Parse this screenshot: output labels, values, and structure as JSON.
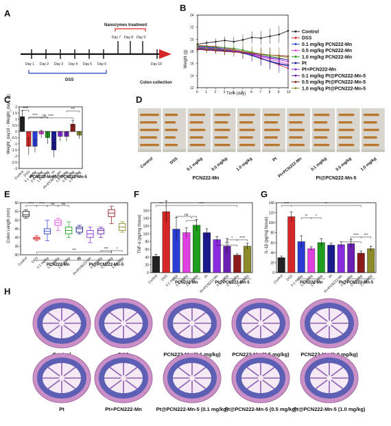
{
  "panels": {
    "A": "A",
    "B": "B",
    "C": "C",
    "D": "D",
    "E": "E",
    "F": "F",
    "G": "G",
    "H": "H"
  },
  "timeline": {
    "nano_label": "Nanozymes treatment",
    "dss_label": "DSS",
    "collect_label": "Colon collection",
    "days_bottom": [
      "Day 1",
      "Day 2",
      "Day 3",
      "Day 4",
      "Day 5",
      "Day 6",
      "Day 10"
    ],
    "days_top": [
      "Day 7",
      "Day 8",
      "Day 9"
    ],
    "colors": {
      "nano": "#d62728",
      "dss": "#1f3fbf",
      "collect": "#2e8b22",
      "arrow": "#d62728"
    }
  },
  "groups": [
    "Control",
    "DSS",
    "0.1 mg/kg PCN222-Mn",
    "0.5 mg/kg PCN222-Mn",
    "1.0 mg/kg PCN222-Mn",
    "Pt",
    "Pt+PCN222-Mn",
    "0.1 mg/kg Pt@PCN222-Mn-5",
    "0.5 mg/kg Pt@PCN222-Mn-5",
    "1.0 mg/kg Pt@PCN222-Mn-5"
  ],
  "group_colors": [
    "#222222",
    "#d62728",
    "#2a3bd6",
    "#e040e0",
    "#1f9e1f",
    "#1a1a8c",
    "#8a2be2",
    "#6a1fb0",
    "#8b1a1a",
    "#8b8b2a"
  ],
  "short_labels": [
    "Control",
    "DSS",
    "0.1 mg/kg",
    "0.5 mg/kg",
    "1.0 mg/kg",
    "Pt",
    "Pt+PCN222-Mn",
    "0.1 mg/kg",
    "0.5 mg/kg",
    "1.0 mg/kg"
  ],
  "group_names": {
    "mn": "PCN222-Mn",
    "ptmn": "Pt@PCN222-Mn-5"
  },
  "stars": {
    "s4": "****",
    "s3": "***",
    "s2": "**",
    "s1": "*",
    "ns": "ns"
  },
  "chart_data": [
    {
      "panel": "B",
      "type": "line",
      "xlabel": "Time (day)",
      "ylabel": "Weight (g)",
      "xlim": [
        0,
        10
      ],
      "ylim": [
        12,
        24
      ],
      "x": [
        0,
        1,
        2,
        3,
        4,
        5,
        6,
        7,
        8,
        9,
        10
      ],
      "xticks": [
        0,
        1,
        2,
        3,
        4,
        5,
        6,
        7,
        8,
        9,
        10
      ],
      "yticks": [
        12,
        14,
        16,
        18,
        20,
        22,
        24
      ],
      "series": [
        {
          "name": "Control",
          "values": [
            19.2,
            19.4,
            19.6,
            19.8,
            19.6,
            19.9,
            20.3,
            20.2,
            20.5,
            20.8,
            21.4
          ]
        },
        {
          "name": "DSS",
          "values": [
            19.0,
            18.9,
            18.8,
            18.6,
            18.3,
            18.0,
            17.6,
            16.9,
            16.3,
            15.8,
            15.2
          ]
        },
        {
          "name": "0.1 mg/kg PCN222-Mn",
          "values": [
            18.8,
            18.7,
            18.6,
            18.4,
            18.2,
            17.8,
            17.4,
            16.8,
            16.3,
            15.9,
            15.6
          ]
        },
        {
          "name": "0.5 mg/kg PCN222-Mn",
          "values": [
            18.6,
            18.5,
            18.4,
            18.3,
            18.1,
            17.8,
            17.5,
            17.0,
            16.7,
            16.3,
            15.9
          ]
        },
        {
          "name": "1.0 mg/kg PCN222-Mn",
          "values": [
            18.9,
            18.8,
            18.7,
            18.6,
            18.5,
            18.2,
            17.9,
            17.5,
            17.2,
            16.9,
            16.6
          ]
        },
        {
          "name": "Pt",
          "values": [
            18.5,
            18.4,
            18.3,
            18.2,
            18.0,
            17.7,
            17.3,
            16.8,
            16.4,
            16.0,
            15.7
          ]
        },
        {
          "name": "Pt+PCN222-Mn",
          "values": [
            18.7,
            18.6,
            18.5,
            18.4,
            18.2,
            17.9,
            17.6,
            17.2,
            16.9,
            16.6,
            16.3
          ]
        },
        {
          "name": "0.1 mg/kg Pt@PCN222-Mn-5",
          "values": [
            18.4,
            18.3,
            18.2,
            18.1,
            18.0,
            17.8,
            17.6,
            17.3,
            17.0,
            16.8,
            16.6
          ]
        },
        {
          "name": "0.5 mg/kg Pt@PCN222-Mn-5",
          "values": [
            18.3,
            18.2,
            18.1,
            18.0,
            17.9,
            17.8,
            17.7,
            17.5,
            17.4,
            17.3,
            17.2
          ]
        },
        {
          "name": "1.0 mg/kg Pt@PCN222-Mn-5",
          "values": [
            18.6,
            18.5,
            18.4,
            18.3,
            18.2,
            18.0,
            17.8,
            17.6,
            17.4,
            17.2,
            17.0
          ]
        }
      ]
    },
    {
      "panel": "C",
      "type": "bar",
      "ylabel": "Weight_day10 - Weight_day1 (g)",
      "ylim": [
        -3.0,
        2.0
      ],
      "yticks": [
        2.0,
        1.5,
        1.0,
        0.5,
        0.0,
        -0.5,
        -1.0,
        -1.5,
        -2.0,
        -2.5,
        -3.0
      ],
      "values": [
        1.2,
        -1.2,
        -1.2,
        -0.2,
        -0.5,
        -1.5,
        -0.4,
        -0.4,
        0.6,
        -0.3
      ],
      "errors": [
        0.5,
        0.7,
        0.5,
        0.3,
        0.5,
        0.6,
        0.4,
        0.4,
        0.3,
        0.3
      ]
    },
    {
      "panel": "E",
      "type": "box",
      "ylabel": "Colon Length (mm)",
      "ylim": [
        30,
        60
      ],
      "yticks": [
        30,
        35,
        40,
        45,
        50,
        55,
        60
      ],
      "boxes": [
        {
          "min": 51,
          "q1": 52,
          "median": 53,
          "q3": 55,
          "max": 56
        },
        {
          "min": 38,
          "q1": 39,
          "median": 39.5,
          "q3": 40,
          "max": 41
        },
        {
          "min": 38,
          "q1": 42,
          "median": 43.5,
          "q3": 45,
          "max": 50
        },
        {
          "min": 44,
          "q1": 47,
          "median": 48.5,
          "q3": 50,
          "max": 51
        },
        {
          "min": 40,
          "q1": 42,
          "median": 44,
          "q3": 46,
          "max": 49
        },
        {
          "min": 42,
          "q1": 43,
          "median": 45,
          "q3": 46,
          "max": 47
        },
        {
          "min": 37,
          "q1": 40,
          "median": 42,
          "q3": 44,
          "max": 46
        },
        {
          "min": 40,
          "q1": 42,
          "median": 44,
          "q3": 45,
          "max": 46
        },
        {
          "min": 48,
          "q1": 52,
          "median": 54,
          "q3": 56,
          "max": 58
        },
        {
          "min": 43,
          "q1": 44,
          "median": 46,
          "q3": 48,
          "max": 49
        }
      ]
    },
    {
      "panel": "F",
      "type": "bar",
      "ylabel": "TNF-α (pg/mg tissue)",
      "ylim": [
        0,
        180
      ],
      "yticks": [
        0,
        20,
        40,
        60,
        80,
        100,
        120,
        140,
        160
      ],
      "values": [
        42,
        157,
        112,
        103,
        122,
        103,
        85,
        68,
        45,
        68
      ],
      "errors": [
        5,
        28,
        30,
        12,
        15,
        10,
        8,
        20,
        3,
        8
      ]
    },
    {
      "panel": "G",
      "type": "bar",
      "ylabel": "IL-1β (pg/mg tissue)",
      "ylim": [
        0,
        140
      ],
      "yticks": [
        0,
        20,
        40,
        60,
        80,
        100,
        120,
        140
      ],
      "values": [
        30,
        112,
        62,
        48,
        60,
        55,
        56,
        58,
        39,
        48
      ],
      "errors": [
        3,
        10,
        12,
        4,
        8,
        4,
        6,
        8,
        4,
        5
      ]
    }
  ],
  "photo_D": {
    "labels": [
      "Control",
      "DSS",
      "0.1 mg/kg",
      "0.5 mg/kg",
      "1.0 mg/kg",
      "Pt",
      "Pt+PCN222-Mn",
      "0.1 mg/kg",
      "0.5 mg/kg",
      "1.0 mg/kg"
    ],
    "group_mn": "PCN222-Mn",
    "group_ptmn": "Pt@PCN222-Mn-5"
  },
  "histology_H": {
    "captions": [
      "Control",
      "DSS",
      "PCN222-Mn (0.1 mg/kg)",
      "PCN222-Mn (0.5 mg/kg)",
      "PCN222-Mn (1.0 mg/kg)",
      "Pt",
      "Pt+PCN222-Mn",
      "Pt@PCN222-Mn-5 (0.1 mg/kg)",
      "Pt@PCN222-Mn-5 (0.5 mg/kg)",
      "Pt@PCN222-Mn-5 (1.0 mg/kg)"
    ]
  }
}
